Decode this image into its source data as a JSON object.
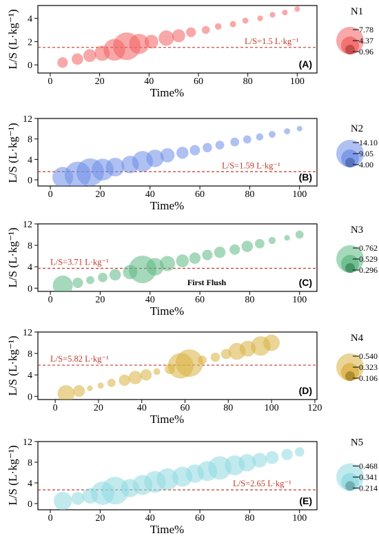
{
  "chart_data": [
    {
      "type": "scatter",
      "panel_label": "(A)",
      "xlabel": "Time%",
      "ylabel": "L/S (L·kg⁻¹)",
      "xlim": [
        -5,
        108
      ],
      "ylim": [
        -0.7,
        5.1
      ],
      "xticks": [
        0,
        20,
        40,
        60,
        80,
        100
      ],
      "yticks": [
        0,
        2,
        4
      ],
      "color": "#f26060",
      "threshold": {
        "value": 1.5,
        "label": "L/S=1.5 L·kg⁻¹"
      },
      "legend": {
        "title": "N1",
        "values": [
          "7.78",
          "4.37",
          "0.96"
        ]
      },
      "size_range": [
        0.96,
        7.78
      ],
      "points": [
        {
          "x": 5,
          "y": 0.2,
          "s": 2.5
        },
        {
          "x": 11,
          "y": 0.5,
          "s": 2.8
        },
        {
          "x": 16,
          "y": 0.8,
          "s": 3.2
        },
        {
          "x": 21,
          "y": 1.0,
          "s": 4.0
        },
        {
          "x": 26,
          "y": 1.3,
          "s": 6.0
        },
        {
          "x": 31,
          "y": 1.6,
          "s": 7.78
        },
        {
          "x": 36,
          "y": 1.8,
          "s": 5.5
        },
        {
          "x": 41,
          "y": 2.0,
          "s": 3.5
        },
        {
          "x": 47,
          "y": 2.3,
          "s": 4.0
        },
        {
          "x": 52,
          "y": 2.5,
          "s": 3.3
        },
        {
          "x": 57,
          "y": 2.8,
          "s": 2.3
        },
        {
          "x": 63,
          "y": 3.0,
          "s": 1.7
        },
        {
          "x": 68,
          "y": 3.3,
          "s": 1.3
        },
        {
          "x": 74,
          "y": 3.5,
          "s": 1.2
        },
        {
          "x": 79,
          "y": 3.8,
          "s": 1.1
        },
        {
          "x": 85,
          "y": 4.0,
          "s": 1.0
        },
        {
          "x": 90,
          "y": 4.3,
          "s": 1.0
        },
        {
          "x": 95,
          "y": 4.5,
          "s": 0.96
        },
        {
          "x": 100,
          "y": 4.8,
          "s": 0.96
        }
      ]
    },
    {
      "type": "scatter",
      "panel_label": "(B)",
      "xlabel": "Time%",
      "ylabel": "L/S (L·kg⁻¹)",
      "xlim": [
        -5,
        107
      ],
      "ylim": [
        -1.2,
        12
      ],
      "xticks": [
        0,
        20,
        40,
        60,
        80,
        100
      ],
      "yticks": [
        0,
        4,
        8,
        12
      ],
      "color": "#6e8ee8",
      "threshold": {
        "value": 1.59,
        "label": "L/S=1.59 L·kg⁻¹"
      },
      "legend": {
        "title": "N2",
        "values": [
          "14.10",
          "9.05",
          "4.00"
        ]
      },
      "size_range": [
        4.0,
        14.1
      ],
      "points": [
        {
          "x": 5,
          "y": 0.5,
          "s": 11.0
        },
        {
          "x": 11,
          "y": 1.0,
          "s": 13.5
        },
        {
          "x": 16,
          "y": 1.5,
          "s": 14.1
        },
        {
          "x": 21,
          "y": 2.0,
          "s": 11.5
        },
        {
          "x": 26,
          "y": 2.5,
          "s": 10.0
        },
        {
          "x": 32,
          "y": 3.0,
          "s": 9.5
        },
        {
          "x": 37,
          "y": 3.6,
          "s": 11.0
        },
        {
          "x": 42,
          "y": 4.2,
          "s": 9.5
        },
        {
          "x": 47,
          "y": 4.8,
          "s": 8.0
        },
        {
          "x": 53,
          "y": 5.3,
          "s": 7.0
        },
        {
          "x": 58,
          "y": 5.8,
          "s": 6.2
        },
        {
          "x": 63,
          "y": 6.3,
          "s": 5.8
        },
        {
          "x": 68,
          "y": 6.8,
          "s": 5.5
        },
        {
          "x": 74,
          "y": 7.4,
          "s": 5.5
        },
        {
          "x": 79,
          "y": 7.9,
          "s": 5.2
        },
        {
          "x": 84,
          "y": 8.4,
          "s": 4.8
        },
        {
          "x": 89,
          "y": 8.9,
          "s": 4.6
        },
        {
          "x": 95,
          "y": 9.5,
          "s": 4.3
        },
        {
          "x": 100,
          "y": 10.0,
          "s": 4.0
        }
      ]
    },
    {
      "type": "scatter",
      "panel_label": "(C)",
      "annotation": "First Flush",
      "xlabel": "Time%",
      "ylabel": "L/S (L·kg⁻¹)",
      "xlim": [
        -5,
        107
      ],
      "ylim": [
        -0.6,
        12
      ],
      "xticks": [
        0,
        20,
        40,
        60,
        80,
        100
      ],
      "yticks": [
        0,
        4,
        8,
        12
      ],
      "color": "#5db883",
      "threshold": {
        "value": 3.71,
        "label": "L/S=3.71 L·kg⁻¹"
      },
      "legend": {
        "title": "N3",
        "values": [
          "0.762",
          "0.529",
          "0.296"
        ]
      },
      "size_range": [
        0.296,
        0.762
      ],
      "points": [
        {
          "x": 5,
          "y": 0.5,
          "s": 0.6
        },
        {
          "x": 11,
          "y": 1.0,
          "s": 0.4
        },
        {
          "x": 16,
          "y": 1.5,
          "s": 0.35
        },
        {
          "x": 21,
          "y": 2.0,
          "s": 0.38
        },
        {
          "x": 26,
          "y": 2.5,
          "s": 0.42
        },
        {
          "x": 32,
          "y": 3.0,
          "s": 0.48
        },
        {
          "x": 37,
          "y": 3.5,
          "s": 0.762
        },
        {
          "x": 42,
          "y": 4.0,
          "s": 0.55
        },
        {
          "x": 47,
          "y": 4.6,
          "s": 0.5
        },
        {
          "x": 53,
          "y": 5.1,
          "s": 0.45
        },
        {
          "x": 58,
          "y": 5.6,
          "s": 0.42
        },
        {
          "x": 63,
          "y": 6.2,
          "s": 0.4
        },
        {
          "x": 68,
          "y": 6.7,
          "s": 0.42
        },
        {
          "x": 74,
          "y": 7.2,
          "s": 0.4
        },
        {
          "x": 79,
          "y": 7.8,
          "s": 0.42
        },
        {
          "x": 84,
          "y": 8.3,
          "s": 0.38
        },
        {
          "x": 89,
          "y": 8.9,
          "s": 0.33
        },
        {
          "x": 95,
          "y": 9.4,
          "s": 0.3
        },
        {
          "x": 100,
          "y": 10.0,
          "s": 0.35
        }
      ]
    },
    {
      "type": "scatter",
      "panel_label": "(D)",
      "xlabel": "Time%",
      "ylabel": "L/S (L·kg⁻¹)",
      "xlim": [
        -8,
        121
      ],
      "ylim": [
        -0.6,
        12
      ],
      "xticks": [
        0,
        20,
        40,
        60,
        80,
        100,
        120
      ],
      "yticks": [
        0,
        4,
        8,
        12
      ],
      "color": "#d9b040",
      "threshold": {
        "value": 5.82,
        "label": "L/S=5.82 L·kg⁻¹"
      },
      "legend": {
        "title": "N4",
        "values": [
          "0.540",
          "0.323",
          "0.106"
        ]
      },
      "size_range": [
        0.106,
        0.54
      ],
      "points": [
        {
          "x": 5,
          "y": 0.5,
          "s": 0.33
        },
        {
          "x": 11,
          "y": 1.0,
          "s": 0.23
        },
        {
          "x": 16,
          "y": 1.5,
          "s": 0.11
        },
        {
          "x": 21,
          "y": 2.0,
          "s": 0.12
        },
        {
          "x": 26,
          "y": 2.5,
          "s": 0.16
        },
        {
          "x": 32,
          "y": 3.0,
          "s": 0.22
        },
        {
          "x": 37,
          "y": 3.5,
          "s": 0.26
        },
        {
          "x": 42,
          "y": 4.0,
          "s": 0.22
        },
        {
          "x": 47,
          "y": 4.6,
          "s": 0.13
        },
        {
          "x": 53,
          "y": 5.1,
          "s": 0.2
        },
        {
          "x": 58,
          "y": 5.7,
          "s": 0.5
        },
        {
          "x": 62,
          "y": 6.2,
          "s": 0.54
        },
        {
          "x": 68,
          "y": 6.8,
          "s": 0.17
        },
        {
          "x": 74,
          "y": 7.3,
          "s": 0.18
        },
        {
          "x": 79,
          "y": 7.9,
          "s": 0.2
        },
        {
          "x": 84,
          "y": 8.4,
          "s": 0.33
        },
        {
          "x": 89,
          "y": 8.9,
          "s": 0.31
        },
        {
          "x": 95,
          "y": 9.4,
          "s": 0.38
        },
        {
          "x": 100,
          "y": 10.0,
          "s": 0.32
        }
      ]
    },
    {
      "type": "scatter",
      "panel_label": "(E)",
      "xlabel": "Time%",
      "ylabel": "L/S (L·kg⁻¹)",
      "xlim": [
        -5,
        107
      ],
      "ylim": [
        -1.2,
        12
      ],
      "xticks": [
        0,
        20,
        40,
        60,
        80,
        100
      ],
      "yticks": [
        0,
        4,
        8,
        12
      ],
      "color": "#8ed8e0",
      "threshold": {
        "value": 2.65,
        "label": "L/S=2.65 L·kg⁻¹"
      },
      "legend": {
        "title": "N5",
        "values": [
          "0.468",
          "0.341",
          "0.214"
        ]
      },
      "size_range": [
        0.214,
        0.468
      ],
      "points": [
        {
          "x": 5,
          "y": 0.5,
          "s": 0.36
        },
        {
          "x": 11,
          "y": 1.0,
          "s": 0.3
        },
        {
          "x": 16,
          "y": 1.5,
          "s": 0.33
        },
        {
          "x": 21,
          "y": 2.0,
          "s": 0.42
        },
        {
          "x": 26,
          "y": 2.5,
          "s": 0.468
        },
        {
          "x": 32,
          "y": 3.0,
          "s": 0.36
        },
        {
          "x": 37,
          "y": 3.6,
          "s": 0.38
        },
        {
          "x": 42,
          "y": 4.2,
          "s": 0.4
        },
        {
          "x": 47,
          "y": 4.7,
          "s": 0.4
        },
        {
          "x": 53,
          "y": 5.2,
          "s": 0.38
        },
        {
          "x": 58,
          "y": 5.8,
          "s": 0.36
        },
        {
          "x": 63,
          "y": 6.3,
          "s": 0.38
        },
        {
          "x": 68,
          "y": 6.9,
          "s": 0.42
        },
        {
          "x": 74,
          "y": 7.4,
          "s": 0.38
        },
        {
          "x": 79,
          "y": 7.9,
          "s": 0.35
        },
        {
          "x": 84,
          "y": 8.4,
          "s": 0.32
        },
        {
          "x": 89,
          "y": 8.9,
          "s": 0.3
        },
        {
          "x": 95,
          "y": 9.5,
          "s": 0.28
        },
        {
          "x": 100,
          "y": 10.0,
          "s": 0.26
        }
      ]
    }
  ]
}
